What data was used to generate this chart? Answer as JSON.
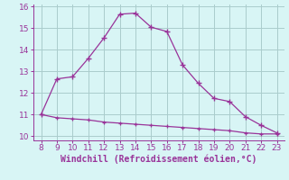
{
  "xlabel": "Windchill (Refroidissement éolien,°C)",
  "line1_x": [
    8,
    9,
    10,
    11,
    12,
    13,
    14,
    15,
    16,
    17,
    18,
    19,
    20,
    21,
    22,
    23
  ],
  "line1_y": [
    11.0,
    12.65,
    12.75,
    13.6,
    14.55,
    15.65,
    15.7,
    15.05,
    14.85,
    13.3,
    12.45,
    11.75,
    11.6,
    10.9,
    10.5,
    10.15
  ],
  "line2_x": [
    8,
    9,
    10,
    11,
    12,
    13,
    14,
    15,
    16,
    17,
    18,
    19,
    20,
    21,
    22,
    23
  ],
  "line2_y": [
    11.0,
    10.85,
    10.8,
    10.75,
    10.65,
    10.6,
    10.55,
    10.5,
    10.45,
    10.4,
    10.35,
    10.3,
    10.25,
    10.15,
    10.1,
    10.1
  ],
  "line_color": "#993399",
  "background_color": "#d8f5f5",
  "grid_color": "#aacccc",
  "axis_color": "#993399",
  "tick_color": "#993399",
  "xlim": [
    7.5,
    23.5
  ],
  "ylim": [
    9.8,
    16.1
  ],
  "yticks": [
    10,
    11,
    12,
    13,
    14,
    15,
    16
  ],
  "xticks": [
    8,
    9,
    10,
    11,
    12,
    13,
    14,
    15,
    16,
    17,
    18,
    19,
    20,
    21,
    22,
    23
  ],
  "xlabel_fontsize": 7.0,
  "tick_fontsize": 6.5
}
